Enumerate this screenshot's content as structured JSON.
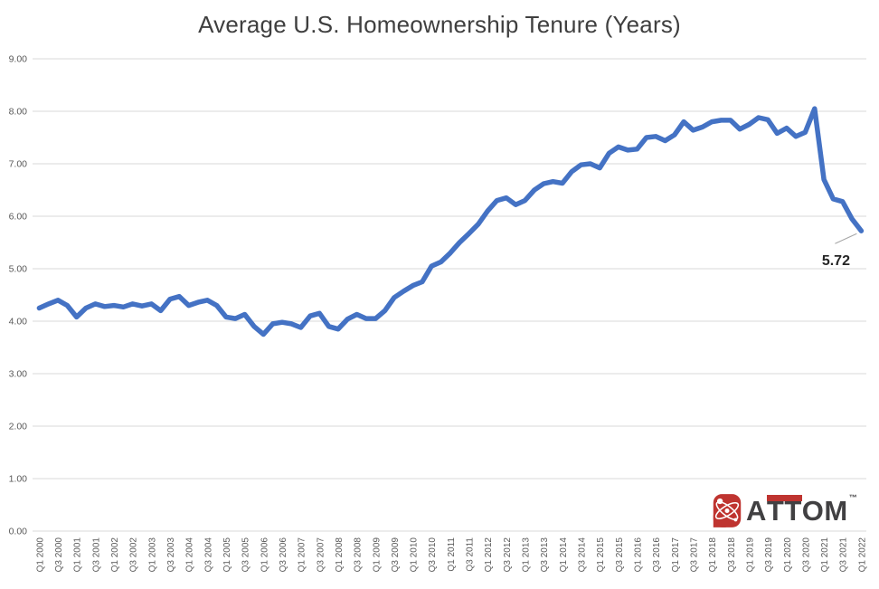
{
  "chart": {
    "title": "Average U.S. Homeownership Tenure (Years)"
  },
  "chart_data": {
    "type": "line",
    "title": "Average U.S. Homeownership Tenure (Years)",
    "x_start": "Q1 2000",
    "x_end": "Q1 2022",
    "x_frequency": "quarterly",
    "x_tick_labels": [
      "Q1 2000",
      "Q3 2000",
      "Q1 2001",
      "Q3 2001",
      "Q1 2002",
      "Q3 2002",
      "Q1 2003",
      "Q3 2003",
      "Q1 2004",
      "Q3 2004",
      "Q1 2005",
      "Q3 2005",
      "Q1 2006",
      "Q3 2006",
      "Q1 2007",
      "Q3 2007",
      "Q1 2008",
      "Q3 2008",
      "Q1 2009",
      "Q3 2009",
      "Q1 2010",
      "Q3 2010",
      "Q1 2011",
      "Q3 2011",
      "Q1 2012",
      "Q3 2012",
      "Q1 2013",
      "Q3 2013",
      "Q1 2014",
      "Q3 2014",
      "Q1 2015",
      "Q3 2015",
      "Q1 2016",
      "Q3 2016",
      "Q1 2017",
      "Q3 2017",
      "Q1 2018",
      "Q3 2018",
      "Q1 2019",
      "Q3 2019",
      "Q1 2020",
      "Q3 2020",
      "Q1 2021",
      "Q3 2021",
      "Q1 2022"
    ],
    "values": [
      4.25,
      4.33,
      4.4,
      4.3,
      4.08,
      4.25,
      4.33,
      4.28,
      4.3,
      4.27,
      4.33,
      4.29,
      4.33,
      4.2,
      4.42,
      4.47,
      4.3,
      4.36,
      4.4,
      4.3,
      4.08,
      4.05,
      4.13,
      3.9,
      3.75,
      3.95,
      3.98,
      3.95,
      3.88,
      4.1,
      4.15,
      3.9,
      3.85,
      4.04,
      4.13,
      4.05,
      4.05,
      4.2,
      4.45,
      4.57,
      4.68,
      4.75,
      5.05,
      5.13,
      5.3,
      5.5,
      5.67,
      5.85,
      6.1,
      6.3,
      6.35,
      6.22,
      6.3,
      6.5,
      6.62,
      6.66,
      6.63,
      6.85,
      6.98,
      7.0,
      6.92,
      7.2,
      7.32,
      7.26,
      7.28,
      7.5,
      7.52,
      7.44,
      7.55,
      7.8,
      7.64,
      7.7,
      7.8,
      7.83,
      7.83,
      7.66,
      7.75,
      7.88,
      7.84,
      7.58,
      7.68,
      7.52,
      7.6,
      8.05,
      6.7,
      6.33,
      6.28,
      5.95,
      5.72
    ],
    "ylim": [
      0,
      9
    ],
    "y_tick_labels": [
      "9.00",
      "8.00",
      "7.00",
      "6.00",
      "5.00",
      "4.00",
      "3.00",
      "2.00",
      "1.00",
      "0.00"
    ],
    "grid": true,
    "legend": false,
    "line_color": "#4472c4",
    "gridline_color": "#d9d9d9",
    "tick_label_color": "#595959",
    "end_label": "5.72",
    "end_label_color": "#262626"
  },
  "logo": {
    "wordmark": "ATTOM",
    "trademark": "™",
    "red": "#bf3430",
    "gray": "#414042"
  }
}
